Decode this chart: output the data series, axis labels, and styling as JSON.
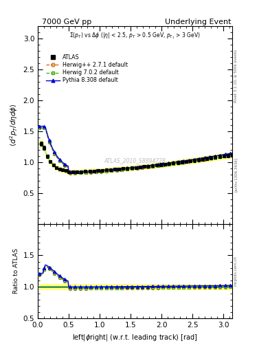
{
  "title_left": "7000 GeV pp",
  "title_right": "Underlying Event",
  "watermark": "ATLAS_2010_S8894728",
  "ylabel_main": "$\\langle d^2 p_T/d\\eta d\\phi\\rangle$",
  "ylabel_ratio": "Ratio to ATLAS",
  "xlabel": "left|$\\phi$right| (w.r.t. leading track) [rad]",
  "rivet_label": "Rivet 3.1.10, ≥ 500k events",
  "arxiv_label": "[arXiv:1306.3436]",
  "mcplots_label": "mcplots.cern.ch",
  "ylim_main": [
    0.0,
    3.2
  ],
  "ylim_ratio": [
    0.5,
    2.0
  ],
  "xlim": [
    0.0,
    3.14159
  ],
  "yticks_main": [
    0.5,
    1.0,
    1.5,
    2.0,
    2.5,
    3.0
  ],
  "yticks_ratio": [
    0.5,
    1.0,
    1.5,
    2.0
  ],
  "legend_entries": [
    "ATLAS",
    "Herwig++ 2.7.1 default",
    "Herwig 7.0.2 default",
    "Pythia 8.308 default"
  ],
  "ATLAS_color": "#000000",
  "herwigpp_color": "#cc6600",
  "herwig702_color": "#44aa00",
  "pythia_color": "#0000dd",
  "band_color_yellow": "#ffff80",
  "band_color_green": "#80ff80",
  "annotation": "$\\Sigma(p_T)$ vs $\\Delta\\phi$ ($|\\eta|$ < 2.5, $p_T$ > 0.5 GeV, $p_{T_1}$ > 3 GeV)"
}
